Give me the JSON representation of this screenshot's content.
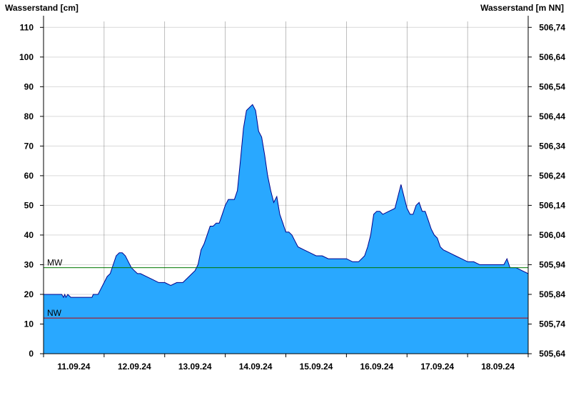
{
  "chart_data": {
    "type": "area",
    "ylabel_left": "Wasserstand [cm]",
    "ylabel_right": "Wasserstand [m NN]",
    "ylim": [
      0,
      112
    ],
    "yticks_left": [
      0,
      10,
      20,
      30,
      40,
      50,
      60,
      70,
      80,
      90,
      100,
      110
    ],
    "yticks_right": [
      "505,64",
      "505,74",
      "505,84",
      "505,94",
      "506,04",
      "506,14",
      "506,24",
      "506,34",
      "506,44",
      "506,54",
      "506,64",
      "506,74"
    ],
    "xlim": [
      0,
      8
    ],
    "x_day_labels": [
      "11.09.24",
      "12.09.24",
      "13.09.24",
      "14.09.24",
      "15.09.24",
      "16.09.24",
      "17.09.24",
      "18.09.24"
    ],
    "grid": true,
    "fill_color": "#29a8ff",
    "line_color": "#00008b",
    "x": [
      0,
      0.3,
      0.33,
      0.35,
      0.37,
      0.4,
      0.45,
      0.5,
      0.8,
      0.82,
      0.9,
      0.95,
      1.0,
      1.05,
      1.1,
      1.15,
      1.2,
      1.25,
      1.3,
      1.35,
      1.4,
      1.45,
      1.5,
      1.55,
      1.6,
      1.7,
      1.8,
      1.9,
      2.0,
      2.1,
      2.2,
      2.3,
      2.4,
      2.5,
      2.55,
      2.6,
      2.65,
      2.7,
      2.75,
      2.8,
      2.85,
      2.9,
      2.95,
      3.0,
      3.05,
      3.1,
      3.15,
      3.2,
      3.25,
      3.3,
      3.35,
      3.4,
      3.45,
      3.5,
      3.55,
      3.6,
      3.65,
      3.7,
      3.75,
      3.8,
      3.85,
      3.9,
      3.95,
      4.0,
      4.05,
      4.1,
      4.15,
      4.2,
      4.3,
      4.4,
      4.5,
      4.6,
      4.7,
      4.8,
      4.9,
      5.0,
      5.1,
      5.2,
      5.3,
      5.35,
      5.4,
      5.45,
      5.5,
      5.55,
      5.6,
      5.7,
      5.8,
      5.9,
      5.95,
      6.0,
      6.05,
      6.1,
      6.15,
      6.2,
      6.25,
      6.3,
      6.35,
      6.4,
      6.45,
      6.5,
      6.55,
      6.6,
      6.7,
      6.8,
      6.9,
      7.0,
      7.1,
      7.2,
      7.3,
      7.4,
      7.5,
      7.6,
      7.65,
      7.7,
      7.8,
      7.9,
      8.0
    ],
    "values": [
      20,
      20,
      19,
      20,
      19,
      20,
      19,
      19,
      19,
      20,
      20,
      22,
      24,
      26,
      27,
      30,
      33,
      34,
      34,
      33,
      31,
      29,
      28,
      27,
      27,
      26,
      25,
      24,
      24,
      23,
      24,
      24,
      26,
      28,
      30,
      35,
      37,
      40,
      43,
      43,
      44,
      44,
      47,
      50,
      52,
      52,
      52,
      55,
      65,
      76,
      82,
      83,
      84,
      82,
      75,
      73,
      67,
      60,
      55,
      51,
      53,
      47,
      44,
      41,
      41,
      40,
      38,
      36,
      35,
      34,
      33,
      33,
      32,
      32,
      32,
      32,
      31,
      31,
      33,
      36,
      40,
      47,
      48,
      48,
      47,
      48,
      49,
      57,
      53,
      49,
      47,
      47,
      50,
      51,
      48,
      48,
      45,
      42,
      40,
      39,
      36,
      35,
      34,
      33,
      32,
      31,
      31,
      30,
      30,
      30,
      30,
      30,
      32,
      29,
      29,
      28,
      27
    ],
    "ref_lines": [
      {
        "label": "MW",
        "value": 29,
        "color": "#007700"
      },
      {
        "label": "NW",
        "value": 12,
        "color": "#bb0000"
      }
    ]
  }
}
